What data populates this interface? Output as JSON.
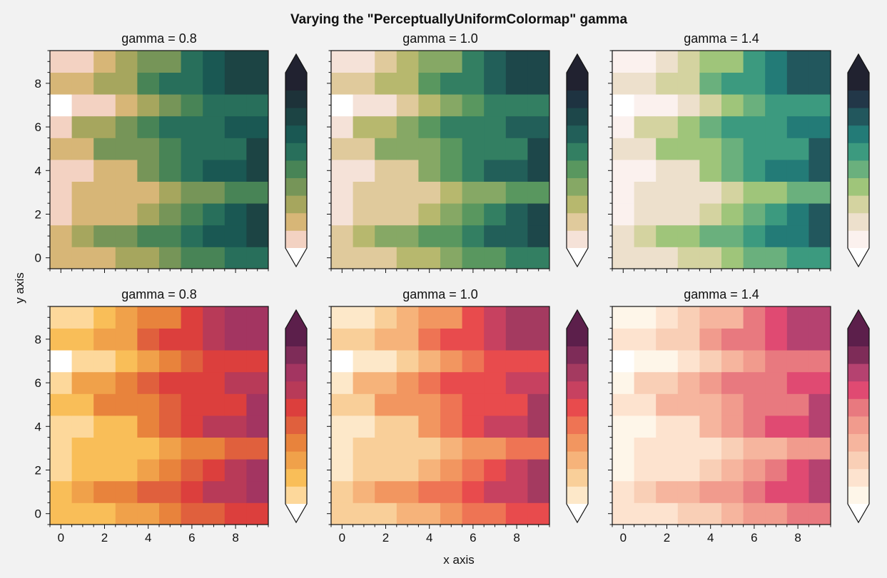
{
  "figure": {
    "title": "Varying the \"PerceptuallyUniformColormap\" gamma",
    "xlabel": "x axis",
    "ylabel": "y axis"
  },
  "chart_data": [
    {
      "type": "heatmap",
      "title": "gamma = 0.8",
      "colormap": "green",
      "gamma": 0.8
    },
    {
      "type": "heatmap",
      "title": "gamma = 1.0",
      "colormap": "green",
      "gamma": 1.0
    },
    {
      "type": "heatmap",
      "title": "gamma = 1.4",
      "colormap": "green",
      "gamma": 1.4
    },
    {
      "type": "heatmap",
      "title": "gamma = 0.8",
      "colormap": "red",
      "gamma": 0.8
    },
    {
      "type": "heatmap",
      "title": "gamma = 1.0",
      "colormap": "red",
      "gamma": 1.0
    },
    {
      "type": "heatmap",
      "title": "gamma = 1.4",
      "colormap": "red",
      "gamma": 1.4
    }
  ],
  "shared": {
    "x": [
      0,
      1,
      2,
      3,
      4,
      5,
      6,
      7,
      8,
      9
    ],
    "y": [
      0,
      1,
      2,
      3,
      4,
      5,
      6,
      7,
      8,
      9
    ],
    "xlim": [
      -0.5,
      9.5
    ],
    "ylim": [
      -0.5,
      9.5
    ],
    "x_tick_labels": [
      "0",
      "2",
      "4",
      "6",
      "8"
    ],
    "y_tick_labels": [
      "0",
      "2",
      "4",
      "6",
      "8"
    ],
    "levels": 10,
    "colorbar_extend": "both",
    "z_levels": [
      [
        2,
        2,
        2,
        3,
        3,
        4,
        5,
        5,
        6,
        6
      ],
      [
        2,
        3,
        4,
        4,
        5,
        5,
        6,
        7,
        7,
        8
      ],
      [
        1,
        2,
        2,
        2,
        3,
        4,
        5,
        6,
        7,
        8
      ],
      [
        1,
        2,
        2,
        2,
        2,
        3,
        4,
        4,
        5,
        5
      ],
      [
        1,
        1,
        2,
        2,
        4,
        5,
        6,
        7,
        7,
        8
      ],
      [
        2,
        2,
        4,
        4,
        4,
        5,
        6,
        6,
        6,
        8
      ],
      [
        1,
        3,
        3,
        4,
        5,
        6,
        6,
        6,
        7,
        7
      ],
      [
        0,
        1,
        1,
        2,
        3,
        4,
        5,
        6,
        6,
        6
      ],
      [
        2,
        2,
        3,
        3,
        5,
        6,
        6,
        7,
        8,
        8
      ],
      [
        1,
        1,
        2,
        3,
        4,
        4,
        6,
        7,
        8,
        8
      ]
    ]
  },
  "colormaps": {
    "green": {
      "0.8": [
        "#ffffff",
        "#f3d2c2",
        "#d7b677",
        "#a6a65e",
        "#769558",
        "#488456",
        "#286f5b",
        "#1a5853",
        "#1c4444",
        "#1d3239",
        "#212230"
      ],
      "1.0": [
        "#ffffff",
        "#f5e2d8",
        "#e0ca9c",
        "#b7b86e",
        "#86a865",
        "#59975f",
        "#337f62",
        "#225f59",
        "#1d474a",
        "#1e3341",
        "#212230"
      ],
      "1.4": [
        "#ffffff",
        "#fbf1ee",
        "#ede0cc",
        "#d4d3a0",
        "#9fc57a",
        "#6ab07d",
        "#3c9a7f",
        "#237b77",
        "#22575d",
        "#223748",
        "#212230"
      ]
    },
    "red": {
      "0.8": [
        "#ffffff",
        "#fdd89b",
        "#f9be58",
        "#f0a14a",
        "#e8833c",
        "#e0603d",
        "#dc3f3d",
        "#b83a58",
        "#a33561",
        "#7e2c58",
        "#5c1f4b"
      ],
      "1.0": [
        "#ffffff",
        "#fde8c9",
        "#f9cf99",
        "#f6b37a",
        "#f29660",
        "#ee7454",
        "#e84b4d",
        "#c74160",
        "#a43a60",
        "#7e2c58",
        "#5c1f4b"
      ],
      "1.4": [
        "#ffffff",
        "#fef6e9",
        "#fde3cf",
        "#f9cfb6",
        "#f6b59e",
        "#f19b8d",
        "#e8797f",
        "#e04a72",
        "#b54270",
        "#7e2c58",
        "#5c1f4b"
      ]
    }
  }
}
